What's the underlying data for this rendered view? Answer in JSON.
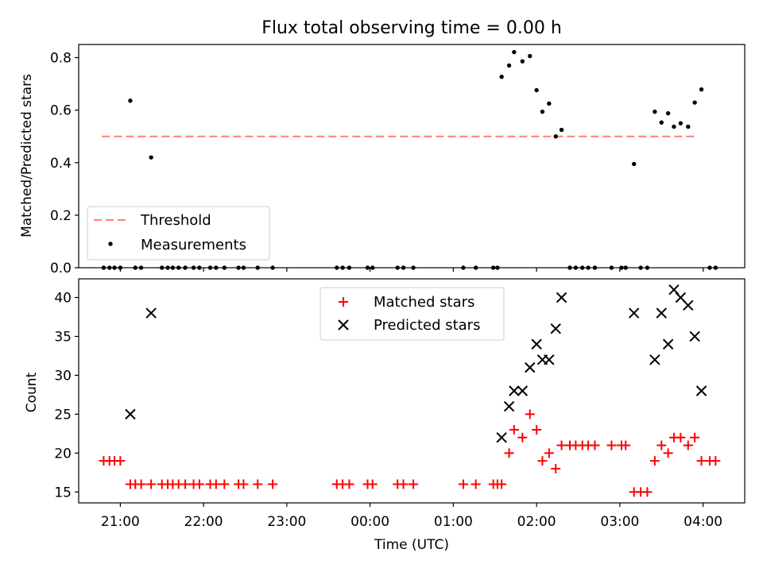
{
  "chart_data": [
    {
      "type": "scatter",
      "title": "Flux total observing time = 0.00 h",
      "xlabel": "",
      "ylabel": "Matched/Predicted stars",
      "xlim": [
        -0.5,
        7.5
      ],
      "ylim": [
        0.0,
        0.85
      ],
      "yticks": [
        0.0,
        0.2,
        0.4,
        0.6,
        0.8
      ],
      "ytick_labels": [
        "0.0",
        "0.2",
        "0.4",
        "0.6",
        "0.8"
      ],
      "xticks": [
        0,
        1,
        2,
        3,
        4,
        5,
        6,
        7
      ],
      "show_xtick_labels": false,
      "legend_position": "lower-left",
      "threshold": {
        "name": "Threshold",
        "value": 0.5,
        "x_range": [
          -0.22,
          6.92
        ],
        "color": "#ff7f7f",
        "style": "dashed"
      },
      "series": [
        {
          "name": "Measurements",
          "marker": "dot",
          "color": "#000000",
          "points": [
            [
              -0.2,
              0.0
            ],
            [
              -0.13,
              0.0
            ],
            [
              -0.07,
              0.0
            ],
            [
              0.0,
              0.0
            ],
            [
              0.12,
              0.636
            ],
            [
              0.18,
              0.0
            ],
            [
              0.25,
              0.0
            ],
            [
              0.37,
              0.42
            ],
            [
              0.5,
              0.0
            ],
            [
              0.57,
              0.0
            ],
            [
              0.63,
              0.0
            ],
            [
              0.7,
              0.0
            ],
            [
              0.78,
              0.0
            ],
            [
              0.88,
              0.0
            ],
            [
              0.95,
              0.0
            ],
            [
              1.08,
              0.0
            ],
            [
              1.15,
              0.0
            ],
            [
              1.25,
              0.0
            ],
            [
              1.42,
              0.0
            ],
            [
              1.48,
              0.0
            ],
            [
              1.65,
              0.0
            ],
            [
              1.83,
              0.0
            ],
            [
              2.6,
              0.0
            ],
            [
              2.67,
              0.0
            ],
            [
              2.75,
              0.0
            ],
            [
              2.97,
              0.0
            ],
            [
              3.03,
              0.0
            ],
            [
              3.33,
              0.0
            ],
            [
              3.4,
              0.0
            ],
            [
              3.52,
              0.0
            ],
            [
              4.12,
              0.0
            ],
            [
              4.27,
              0.0
            ],
            [
              4.48,
              0.0
            ],
            [
              4.53,
              0.0
            ],
            [
              4.58,
              0.727
            ],
            [
              4.67,
              0.77
            ],
            [
              4.73,
              0.821
            ],
            [
              4.83,
              0.786
            ],
            [
              4.92,
              0.806
            ],
            [
              5.0,
              0.676
            ],
            [
              5.07,
              0.594
            ],
            [
              5.15,
              0.625
            ],
            [
              5.23,
              0.5
            ],
            [
              5.3,
              0.525
            ],
            [
              5.4,
              0.0
            ],
            [
              5.47,
              0.0
            ],
            [
              5.55,
              0.0
            ],
            [
              5.62,
              0.0
            ],
            [
              5.7,
              0.0
            ],
            [
              5.9,
              0.0
            ],
            [
              6.02,
              0.0
            ],
            [
              6.07,
              0.0
            ],
            [
              6.17,
              0.395
            ],
            [
              6.25,
              0.0
            ],
            [
              6.33,
              0.0
            ],
            [
              6.42,
              0.594
            ],
            [
              6.5,
              0.553
            ],
            [
              6.58,
              0.588
            ],
            [
              6.65,
              0.537
            ],
            [
              6.73,
              0.55
            ],
            [
              6.82,
              0.537
            ],
            [
              6.9,
              0.629
            ],
            [
              6.98,
              0.679
            ],
            [
              7.08,
              0.0
            ],
            [
              7.15,
              0.0
            ]
          ]
        }
      ]
    },
    {
      "type": "scatter",
      "title": "",
      "xlabel": "Time (UTC)",
      "ylabel": "Count",
      "xlim": [
        -0.5,
        7.5
      ],
      "ylim": [
        13.6,
        42.4
      ],
      "yticks": [
        15,
        20,
        25,
        30,
        35,
        40
      ],
      "ytick_labels": [
        "15",
        "20",
        "25",
        "30",
        "35",
        "40"
      ],
      "xticks": [
        0,
        1,
        2,
        3,
        4,
        5,
        6,
        7
      ],
      "xtick_labels": [
        "21:00",
        "22:00",
        "23:00",
        "00:00",
        "01:00",
        "02:00",
        "03:00",
        "04:00"
      ],
      "legend_position": "upper-center",
      "series": [
        {
          "name": "Matched stars",
          "marker": "plus",
          "color": "#ff0000",
          "points": [
            [
              -0.2,
              19
            ],
            [
              -0.13,
              19
            ],
            [
              -0.07,
              19
            ],
            [
              0.0,
              19
            ],
            [
              0.12,
              16
            ],
            [
              0.18,
              16
            ],
            [
              0.25,
              16
            ],
            [
              0.37,
              16
            ],
            [
              0.5,
              16
            ],
            [
              0.57,
              16
            ],
            [
              0.63,
              16
            ],
            [
              0.7,
              16
            ],
            [
              0.78,
              16
            ],
            [
              0.88,
              16
            ],
            [
              0.95,
              16
            ],
            [
              1.08,
              16
            ],
            [
              1.15,
              16
            ],
            [
              1.25,
              16
            ],
            [
              1.42,
              16
            ],
            [
              1.48,
              16
            ],
            [
              1.65,
              16
            ],
            [
              1.83,
              16
            ],
            [
              2.6,
              16
            ],
            [
              2.67,
              16
            ],
            [
              2.75,
              16
            ],
            [
              2.97,
              16
            ],
            [
              3.03,
              16
            ],
            [
              3.33,
              16
            ],
            [
              3.4,
              16
            ],
            [
              3.52,
              16
            ],
            [
              4.12,
              16
            ],
            [
              4.27,
              16
            ],
            [
              4.48,
              16
            ],
            [
              4.53,
              16
            ],
            [
              4.58,
              16
            ],
            [
              4.67,
              20
            ],
            [
              4.73,
              23
            ],
            [
              4.83,
              22
            ],
            [
              4.92,
              25
            ],
            [
              5.0,
              23
            ],
            [
              5.07,
              19
            ],
            [
              5.15,
              20
            ],
            [
              5.23,
              18
            ],
            [
              5.3,
              21
            ],
            [
              5.4,
              21
            ],
            [
              5.47,
              21
            ],
            [
              5.55,
              21
            ],
            [
              5.62,
              21
            ],
            [
              5.7,
              21
            ],
            [
              5.9,
              21
            ],
            [
              6.02,
              21
            ],
            [
              6.07,
              21
            ],
            [
              6.17,
              15
            ],
            [
              6.25,
              15
            ],
            [
              6.33,
              15
            ],
            [
              6.42,
              19
            ],
            [
              6.5,
              21
            ],
            [
              6.58,
              20
            ],
            [
              6.65,
              22
            ],
            [
              6.73,
              22
            ],
            [
              6.82,
              21
            ],
            [
              6.9,
              22
            ],
            [
              6.98,
              19
            ],
            [
              7.08,
              19
            ],
            [
              7.15,
              19
            ]
          ]
        },
        {
          "name": "Predicted stars",
          "marker": "x",
          "color": "#000000",
          "points": [
            [
              0.12,
              25
            ],
            [
              0.37,
              38
            ],
            [
              4.58,
              22
            ],
            [
              4.67,
              26
            ],
            [
              4.73,
              28
            ],
            [
              4.83,
              28
            ],
            [
              4.92,
              31
            ],
            [
              5.0,
              34
            ],
            [
              5.07,
              32
            ],
            [
              5.15,
              32
            ],
            [
              5.23,
              36
            ],
            [
              5.3,
              40
            ],
            [
              6.17,
              38
            ],
            [
              6.42,
              32
            ],
            [
              6.5,
              38
            ],
            [
              6.58,
              34
            ],
            [
              6.65,
              41
            ],
            [
              6.73,
              40
            ],
            [
              6.82,
              39
            ],
            [
              6.9,
              35
            ],
            [
              6.98,
              28
            ]
          ]
        }
      ]
    }
  ]
}
